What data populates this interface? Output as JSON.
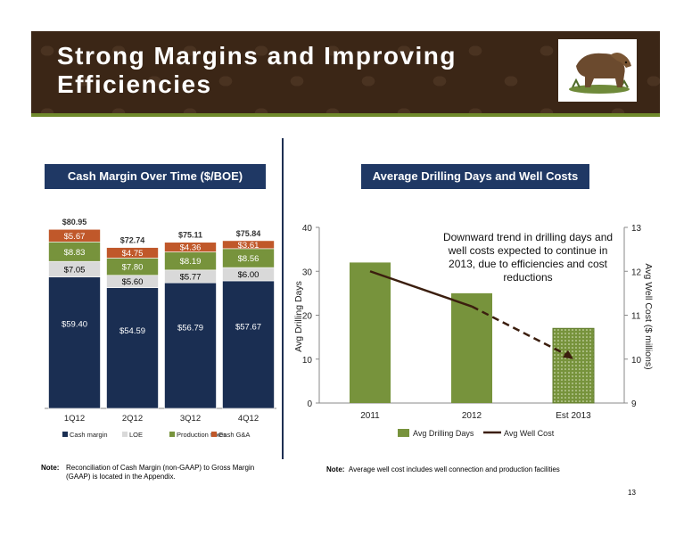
{
  "slide": {
    "title": "Strong Margins and Improving Efficiencies",
    "page_number": "13",
    "colors": {
      "banner": "#3b2616",
      "accent": "#6f8a2b",
      "navy": "#1f3864"
    }
  },
  "left_panel": {
    "header": "Cash Margin Over Time ($/BOE)"
  },
  "right_panel": {
    "header": "Average Drilling Days and Well Costs"
  },
  "notes": {
    "label": "Note:",
    "left": "Reconciliation of Cash Margin (non-GAAP) to Gross Margin (GAAP) is located in the Appendix.",
    "right": "Average well cost includes well connection and production facilities"
  },
  "chart_data": [
    {
      "type": "bar",
      "stacked": true,
      "title": "Cash Margin Over Time ($/BOE)",
      "categories": [
        "1Q12",
        "2Q12",
        "3Q12",
        "4Q12"
      ],
      "series": [
        {
          "name": "Cash margin",
          "color": "#1a2e52",
          "values": [
            59.4,
            54.59,
            56.79,
            57.67
          ],
          "labels": [
            "$59.40",
            "$54.59",
            "$56.79",
            "$57.67"
          ]
        },
        {
          "name": "LOE",
          "color": "#d9d9d9",
          "values": [
            7.05,
            5.6,
            5.77,
            6.0
          ],
          "labels": [
            "$7.05",
            "$5.60",
            "$5.77",
            "$6.00"
          ]
        },
        {
          "name": "Production taxes",
          "color": "#77933c",
          "values": [
            8.83,
            7.8,
            8.19,
            8.56
          ],
          "labels": [
            "$8.83",
            "$7.80",
            "$8.19",
            "$8.56"
          ]
        },
        {
          "name": "Cash G&A",
          "color": "#c0582a",
          "values": [
            5.67,
            4.75,
            4.36,
            3.61
          ],
          "labels": [
            "$5.67",
            "$4.75",
            "$4.36",
            "$3.61"
          ]
        }
      ],
      "totals": [
        "$80.95",
        "$72.74",
        "$75.11",
        "$75.84"
      ],
      "ylim": [
        0,
        100
      ],
      "legend": "bottom"
    },
    {
      "type": "bar",
      "title": "Average Drilling Days and Well Costs",
      "categories": [
        "2011",
        "2012",
        "Est 2013"
      ],
      "bar_series": {
        "name": "Avg Drilling Days",
        "color": "#77933c",
        "values": [
          32,
          25,
          17
        ]
      },
      "line_series": {
        "name": "Avg Well Cost",
        "color": "#3b1e0e",
        "values": [
          12.0,
          11.2,
          10.0
        ],
        "estimated_from_index": 1
      },
      "ylabel": "Avg Drilling Days",
      "y2label": "Avg Well Cost ($ millions)",
      "ylim": [
        0,
        40
      ],
      "y_ticks": [
        "0",
        "10",
        "20",
        "30",
        "40"
      ],
      "y2lim": [
        9,
        13
      ],
      "y2_ticks": [
        "9",
        "10",
        "11",
        "12",
        "13"
      ],
      "annotation": "Downward trend in drilling days and well costs expected to continue in 2013, due to efficiencies and cost reductions",
      "legend": "bottom"
    }
  ]
}
